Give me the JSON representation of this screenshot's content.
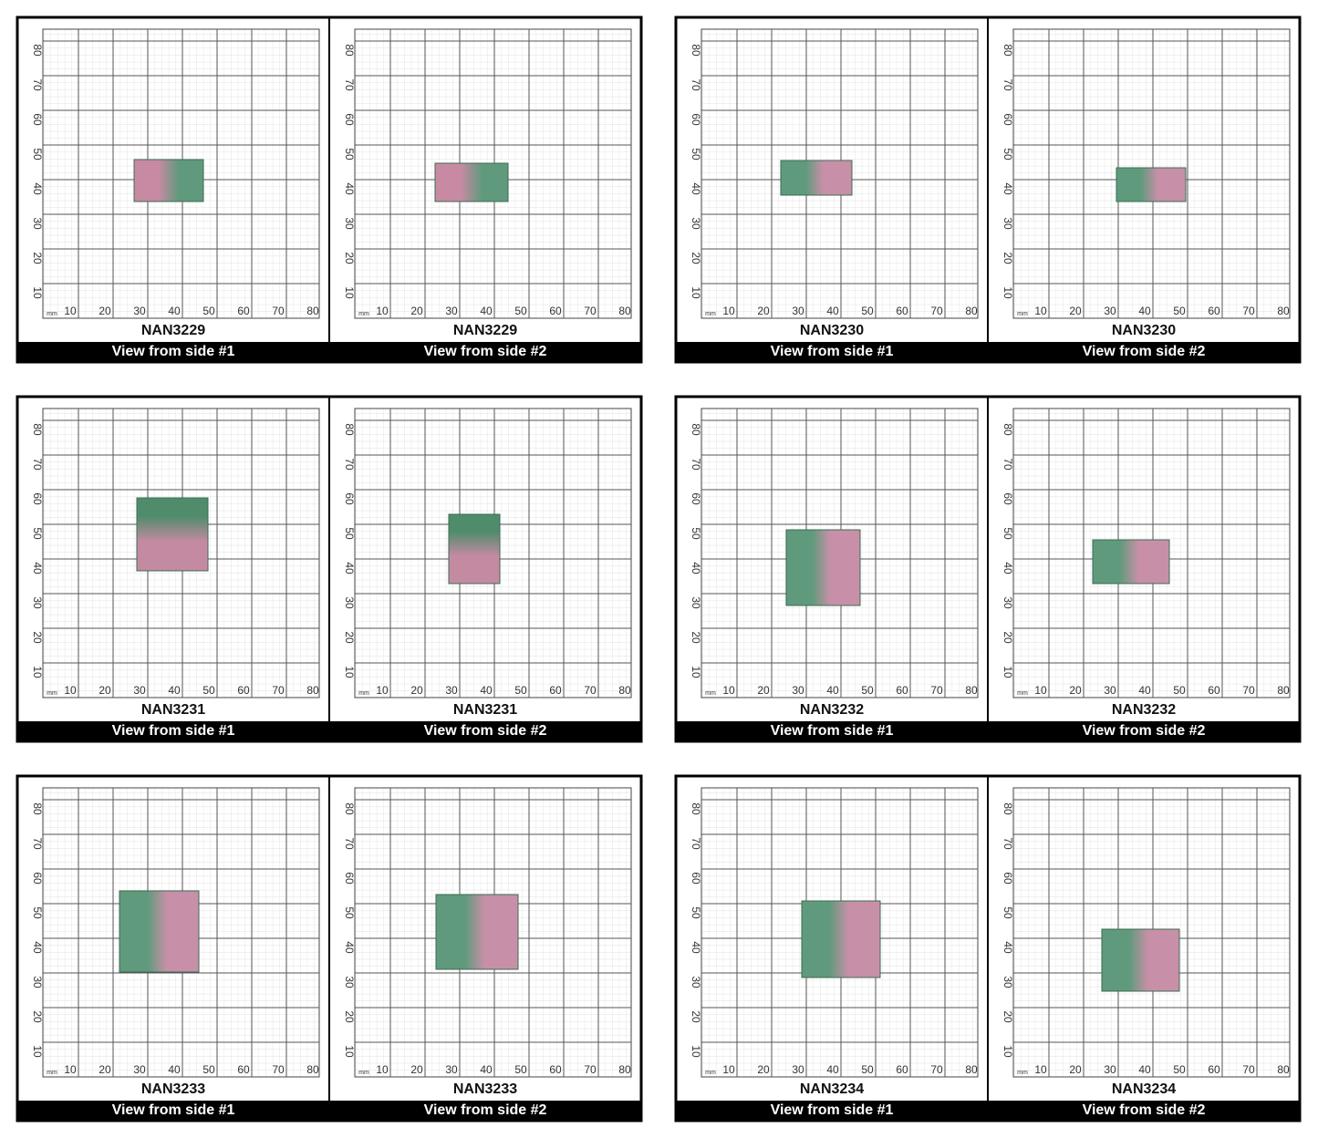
{
  "scale": {
    "unit": "mm",
    "x_labels": [
      10,
      20,
      30,
      40,
      50,
      60,
      70,
      80
    ],
    "y_labels": [
      10,
      20,
      30,
      40,
      50,
      60,
      70,
      80
    ]
  },
  "panels": [
    {
      "views": [
        {
          "specimen": "NAN3229",
          "caption": "View from side #1"
        },
        {
          "specimen": "NAN3229",
          "caption": "View from side #2"
        }
      ]
    },
    {
      "views": [
        {
          "specimen": "NAN3230",
          "caption": "View from side #1"
        },
        {
          "specimen": "NAN3230",
          "caption": "View from side #2"
        }
      ]
    },
    {
      "views": [
        {
          "specimen": "NAN3231",
          "caption": "View from side #1"
        },
        {
          "specimen": "NAN3231",
          "caption": "View from side #2"
        }
      ]
    },
    {
      "views": [
        {
          "specimen": "NAN3232",
          "caption": "View from side #1"
        },
        {
          "specimen": "NAN3232",
          "caption": "View from side #2"
        }
      ]
    },
    {
      "views": [
        {
          "specimen": "NAN3233",
          "caption": "View from side #1"
        },
        {
          "specimen": "NAN3233",
          "caption": "View from side #2"
        }
      ]
    },
    {
      "views": [
        {
          "specimen": "NAN3234",
          "caption": "View from side #1"
        },
        {
          "specimen": "NAN3234",
          "caption": "View from side #2"
        }
      ]
    }
  ]
}
